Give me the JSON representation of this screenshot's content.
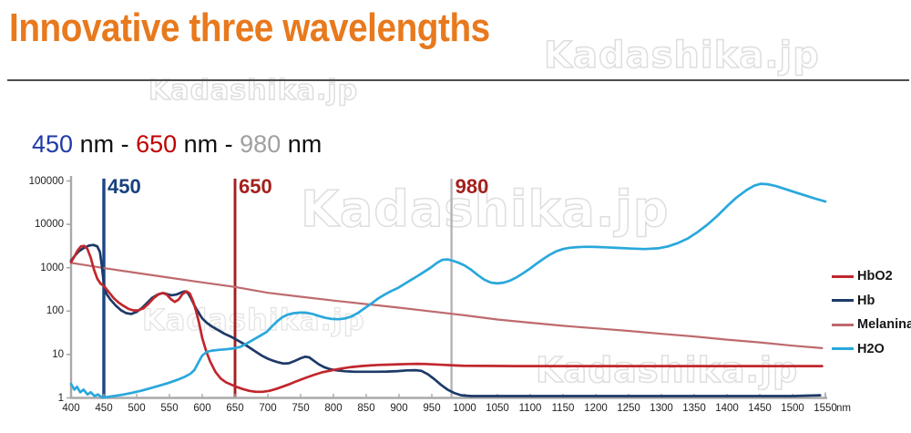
{
  "title": "Innovative three wavelengths",
  "subtitle": {
    "v1": "450",
    "sep1": " nm - ",
    "v2": "650",
    "sep2": " nm - ",
    "v3": "980",
    "unit": " nm"
  },
  "watermark": "Kadashika.jp",
  "colors": {
    "title_orange": "#E8791D",
    "wavelength_450": "#1F3BA6",
    "wavelength_650": "#C00000",
    "wavelength_980": "#A0A0A0",
    "axis_gray": "#A9A9A9",
    "hbo2_red": "#C1272D",
    "hb_navy": "#1D3A68",
    "melanina_rose": "#BE6A6E",
    "h2o_cyan": "#29A8DC"
  },
  "chart_data": {
    "type": "line",
    "title": "",
    "xlabel": "nm",
    "ylabel": "",
    "x_range": [
      400,
      1550
    ],
    "y_scale": "log",
    "y_range": [
      1,
      100000
    ],
    "grid": false,
    "legend_position": "right",
    "x_ticks": [
      400,
      450,
      500,
      550,
      600,
      650,
      700,
      750,
      800,
      850,
      900,
      950,
      1000,
      1050,
      1100,
      1150,
      1200,
      1250,
      1300,
      1350,
      1400,
      1450,
      1500,
      1550
    ],
    "y_ticks": [
      1,
      10,
      100,
      1000,
      10000,
      100000
    ],
    "vlines": [
      {
        "x": 450,
        "label": "450",
        "line_color": "#1C4587",
        "label_color": "#17407E",
        "width": 3.4
      },
      {
        "x": 650,
        "label": "650",
        "line_color": "#A3201D",
        "label_color": "#A3201D",
        "width": 2.9
      },
      {
        "x": 980,
        "label": "980",
        "line_color": "#B3B3B3",
        "label_color": "#A3201D",
        "width": 2.4
      }
    ],
    "legend": [
      {
        "name": "HbO2",
        "color": "#C1272D"
      },
      {
        "name": "Hb",
        "color": "#1D3A68"
      },
      {
        "name": "Melanina",
        "color": "#BE6A6E"
      },
      {
        "name": "H2O",
        "color": "#29A8DC"
      }
    ],
    "series": [
      {
        "name": "Melanina",
        "color": "#BE6A6E",
        "stroke_width": 2.2,
        "points": [
          [
            400,
            1300
          ],
          [
            450,
            980
          ],
          [
            500,
            760
          ],
          [
            550,
            590
          ],
          [
            600,
            460
          ],
          [
            650,
            360
          ],
          [
            700,
            265
          ],
          [
            750,
            215
          ],
          [
            800,
            175
          ],
          [
            850,
            145
          ],
          [
            900,
            120
          ],
          [
            950,
            98
          ],
          [
            1000,
            80
          ],
          [
            1050,
            64
          ],
          [
            1100,
            54
          ],
          [
            1150,
            46
          ],
          [
            1200,
            40
          ],
          [
            1250,
            35
          ],
          [
            1300,
            30
          ],
          [
            1350,
            26
          ],
          [
            1400,
            22
          ],
          [
            1450,
            19
          ],
          [
            1500,
            16
          ],
          [
            1545,
            14
          ]
        ]
      },
      {
        "name": "Hb",
        "color": "#1D3A68",
        "stroke_width": 2.7,
        "points": [
          [
            400,
            1450
          ],
          [
            406,
            1900
          ],
          [
            412,
            2400
          ],
          [
            420,
            2900
          ],
          [
            428,
            3250
          ],
          [
            434,
            3350
          ],
          [
            440,
            3100
          ],
          [
            444,
            2300
          ],
          [
            447,
            1100
          ],
          [
            450,
            420
          ],
          [
            454,
            250
          ],
          [
            460,
            185
          ],
          [
            468,
            135
          ],
          [
            476,
            105
          ],
          [
            484,
            90
          ],
          [
            492,
            86
          ],
          [
            500,
            96
          ],
          [
            508,
            118
          ],
          [
            516,
            155
          ],
          [
            524,
            205
          ],
          [
            532,
            240
          ],
          [
            540,
            260
          ],
          [
            546,
            248
          ],
          [
            553,
            232
          ],
          [
            560,
            240
          ],
          [
            567,
            265
          ],
          [
            573,
            285
          ],
          [
            578,
            262
          ],
          [
            583,
            195
          ],
          [
            588,
            135
          ],
          [
            593,
            100
          ],
          [
            600,
            68
          ],
          [
            608,
            52
          ],
          [
            616,
            43
          ],
          [
            625,
            36
          ],
          [
            634,
            30
          ],
          [
            643,
            26
          ],
          [
            652,
            22
          ],
          [
            662,
            18
          ],
          [
            672,
            14.5
          ],
          [
            682,
            11.5
          ],
          [
            692,
            9.2
          ],
          [
            700,
            8.0
          ],
          [
            708,
            7.2
          ],
          [
            716,
            6.6
          ],
          [
            724,
            6.2
          ],
          [
            732,
            6.3
          ],
          [
            740,
            7.0
          ],
          [
            750,
            8.2
          ],
          [
            757,
            8.9
          ],
          [
            763,
            8.6
          ],
          [
            770,
            7.2
          ],
          [
            778,
            5.9
          ],
          [
            786,
            5.1
          ],
          [
            795,
            4.6
          ],
          [
            805,
            4.3
          ],
          [
            818,
            4.1
          ],
          [
            832,
            4.0
          ],
          [
            848,
            4.0
          ],
          [
            865,
            4.0
          ],
          [
            882,
            4.05
          ],
          [
            898,
            4.15
          ],
          [
            912,
            4.3
          ],
          [
            925,
            4.35
          ],
          [
            934,
            4.2
          ],
          [
            944,
            3.5
          ],
          [
            954,
            2.7
          ],
          [
            964,
            2.0
          ],
          [
            974,
            1.55
          ],
          [
            984,
            1.3
          ],
          [
            995,
            1.15
          ],
          [
            1010,
            1.1
          ],
          [
            1100,
            1.1
          ],
          [
            1200,
            1.1
          ],
          [
            1300,
            1.1
          ],
          [
            1400,
            1.1
          ],
          [
            1500,
            1.1
          ],
          [
            1542,
            1.15
          ]
        ]
      },
      {
        "name": "HbO2",
        "color": "#C1272D",
        "stroke_width": 2.7,
        "points": [
          [
            400,
            1350
          ],
          [
            405,
            1800
          ],
          [
            410,
            2500
          ],
          [
            415,
            3100
          ],
          [
            420,
            3200
          ],
          [
            425,
            2700
          ],
          [
            430,
            1700
          ],
          [
            435,
            900
          ],
          [
            440,
            560
          ],
          [
            445,
            430
          ],
          [
            450,
            380
          ],
          [
            458,
            270
          ],
          [
            465,
            200
          ],
          [
            472,
            160
          ],
          [
            480,
            132
          ],
          [
            488,
            112
          ],
          [
            495,
            104
          ],
          [
            502,
            104
          ],
          [
            510,
            115
          ],
          [
            518,
            148
          ],
          [
            526,
            200
          ],
          [
            534,
            248
          ],
          [
            540,
            262
          ],
          [
            546,
            240
          ],
          [
            552,
            190
          ],
          [
            558,
            163
          ],
          [
            564,
            185
          ],
          [
            570,
            248
          ],
          [
            576,
            285
          ],
          [
            581,
            255
          ],
          [
            586,
            170
          ],
          [
            590,
            108
          ],
          [
            595,
            55
          ],
          [
            600,
            24
          ],
          [
            606,
            12
          ],
          [
            612,
            7
          ],
          [
            620,
            4
          ],
          [
            628,
            2.8
          ],
          [
            636,
            2.3
          ],
          [
            645,
            2.0
          ],
          [
            652,
            1.8
          ],
          [
            662,
            1.6
          ],
          [
            672,
            1.45
          ],
          [
            682,
            1.38
          ],
          [
            692,
            1.38
          ],
          [
            702,
            1.45
          ],
          [
            712,
            1.6
          ],
          [
            722,
            1.8
          ],
          [
            732,
            2.05
          ],
          [
            742,
            2.35
          ],
          [
            752,
            2.7
          ],
          [
            762,
            3.05
          ],
          [
            772,
            3.45
          ],
          [
            782,
            3.85
          ],
          [
            792,
            4.15
          ],
          [
            802,
            4.45
          ],
          [
            815,
            4.85
          ],
          [
            828,
            5.15
          ],
          [
            842,
            5.4
          ],
          [
            856,
            5.6
          ],
          [
            870,
            5.75
          ],
          [
            885,
            5.85
          ],
          [
            900,
            5.95
          ],
          [
            915,
            6.05
          ],
          [
            928,
            6.1
          ],
          [
            940,
            6.05
          ],
          [
            955,
            5.9
          ],
          [
            970,
            5.75
          ],
          [
            985,
            5.6
          ],
          [
            1000,
            5.5
          ],
          [
            1030,
            5.45
          ],
          [
            1080,
            5.4
          ],
          [
            1150,
            5.4
          ],
          [
            1250,
            5.4
          ],
          [
            1350,
            5.4
          ],
          [
            1450,
            5.4
          ],
          [
            1545,
            5.4
          ]
        ]
      },
      {
        "name": "H2O",
        "color": "#29A8DC",
        "stroke_width": 2.7,
        "points": [
          [
            400,
            2.1
          ],
          [
            405,
            1.55
          ],
          [
            409,
            1.8
          ],
          [
            414,
            1.35
          ],
          [
            419,
            1.55
          ],
          [
            425,
            1.2
          ],
          [
            430,
            1.35
          ],
          [
            436,
            1.1
          ],
          [
            441,
            1.2
          ],
          [
            447,
            1.02
          ],
          [
            455,
            1.05
          ],
          [
            465,
            1.1
          ],
          [
            478,
            1.18
          ],
          [
            492,
            1.3
          ],
          [
            506,
            1.45
          ],
          [
            520,
            1.65
          ],
          [
            534,
            1.9
          ],
          [
            548,
            2.2
          ],
          [
            562,
            2.6
          ],
          [
            574,
            3.1
          ],
          [
            582,
            3.6
          ],
          [
            588,
            4.4
          ],
          [
            594,
            6.5
          ],
          [
            600,
            9.5
          ],
          [
            607,
            11.5
          ],
          [
            615,
            12.3
          ],
          [
            625,
            12.8
          ],
          [
            636,
            13.2
          ],
          [
            648,
            13.8
          ],
          [
            658,
            15
          ],
          [
            668,
            18
          ],
          [
            678,
            22
          ],
          [
            688,
            27
          ],
          [
            698,
            33
          ],
          [
            706,
            44
          ],
          [
            714,
            58
          ],
          [
            722,
            72
          ],
          [
            730,
            83
          ],
          [
            740,
            90
          ],
          [
            750,
            93
          ],
          [
            758,
            92
          ],
          [
            768,
            86
          ],
          [
            778,
            77
          ],
          [
            788,
            70
          ],
          [
            798,
            66
          ],
          [
            808,
            65
          ],
          [
            818,
            68
          ],
          [
            828,
            76
          ],
          [
            838,
            92
          ],
          [
            848,
            118
          ],
          [
            858,
            150
          ],
          [
            868,
            195
          ],
          [
            878,
            240
          ],
          [
            888,
            290
          ],
          [
            898,
            340
          ],
          [
            908,
            420
          ],
          [
            918,
            520
          ],
          [
            928,
            640
          ],
          [
            938,
            800
          ],
          [
            948,
            1000
          ],
          [
            958,
            1300
          ],
          [
            966,
            1520
          ],
          [
            974,
            1550
          ],
          [
            982,
            1450
          ],
          [
            990,
            1320
          ],
          [
            1000,
            1130
          ],
          [
            1010,
            900
          ],
          [
            1020,
            680
          ],
          [
            1030,
            530
          ],
          [
            1040,
            455
          ],
          [
            1050,
            435
          ],
          [
            1060,
            455
          ],
          [
            1070,
            510
          ],
          [
            1080,
            610
          ],
          [
            1090,
            760
          ],
          [
            1100,
            960
          ],
          [
            1110,
            1250
          ],
          [
            1120,
            1600
          ],
          [
            1130,
            2000
          ],
          [
            1140,
            2400
          ],
          [
            1150,
            2700
          ],
          [
            1160,
            2880
          ],
          [
            1172,
            2990
          ],
          [
            1185,
            3040
          ],
          [
            1200,
            3020
          ],
          [
            1215,
            2950
          ],
          [
            1235,
            2850
          ],
          [
            1255,
            2760
          ],
          [
            1275,
            2700
          ],
          [
            1295,
            2800
          ],
          [
            1310,
            3100
          ],
          [
            1325,
            3700
          ],
          [
            1340,
            4700
          ],
          [
            1355,
            6600
          ],
          [
            1370,
            9800
          ],
          [
            1385,
            15500
          ],
          [
            1400,
            26000
          ],
          [
            1415,
            42000
          ],
          [
            1430,
            62000
          ],
          [
            1442,
            78000
          ],
          [
            1452,
            86000
          ],
          [
            1462,
            84000
          ],
          [
            1475,
            76000
          ],
          [
            1490,
            64000
          ],
          [
            1505,
            54000
          ],
          [
            1520,
            46000
          ],
          [
            1535,
            39000
          ],
          [
            1550,
            33500
          ]
        ]
      }
    ]
  }
}
